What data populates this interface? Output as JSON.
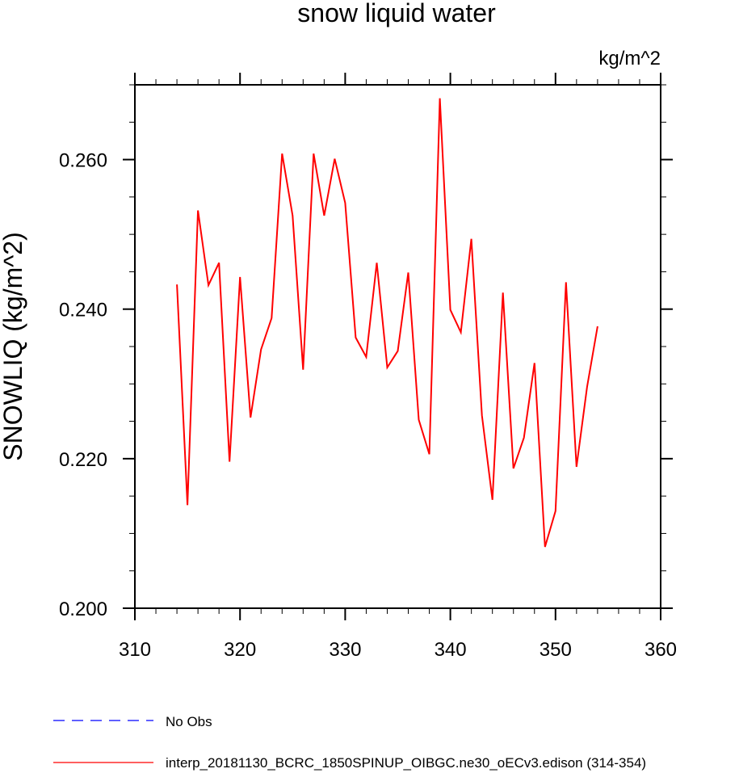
{
  "chart_data": {
    "type": "line",
    "title": "snow liquid water",
    "units_label": "kg/m^2",
    "xlabel": "",
    "ylabel": "SNOWLIQ  (kg/m^2)",
    "xlim": [
      310,
      360
    ],
    "ylim": [
      0.2,
      0.27
    ],
    "x_ticks": [
      310,
      320,
      330,
      340,
      350,
      360
    ],
    "x_tick_labels": [
      "310",
      "320",
      "330",
      "340",
      "350",
      "360"
    ],
    "y_ticks": [
      0.2,
      0.22,
      0.24,
      0.26
    ],
    "y_tick_labels": [
      "0.200",
      "0.220",
      "0.240",
      "0.260"
    ],
    "x_minor_step": 2,
    "y_minor_step": 0.005,
    "grid": false,
    "legend_position": "bottom-left",
    "series": [
      {
        "name": "No Obs",
        "color": "#0000ff",
        "dash": "dashed",
        "x": [],
        "y": []
      },
      {
        "name": "interp_20181130_BCRC_1850SPINUP_OIBGC.ne30_oECv3.edison (314-354)",
        "color": "#ff0000",
        "dash": "solid",
        "x": [
          314,
          315,
          316,
          317,
          318,
          319,
          320,
          321,
          322,
          323,
          324,
          325,
          326,
          327,
          328,
          329,
          330,
          331,
          332,
          333,
          334,
          335,
          336,
          337,
          338,
          339,
          340,
          341,
          342,
          343,
          344,
          345,
          346,
          347,
          348,
          349,
          350,
          351,
          352,
          353,
          354
        ],
        "y": [
          0.2433,
          0.2138,
          0.2532,
          0.2432,
          0.2462,
          0.2196,
          0.2443,
          0.2255,
          0.2346,
          0.2388,
          0.2608,
          0.2525,
          0.2319,
          0.2608,
          0.2525,
          0.2601,
          0.2542,
          0.2362,
          0.2336,
          0.2462,
          0.2322,
          0.2344,
          0.2449,
          0.2252,
          0.2206,
          0.2682,
          0.2399,
          0.2369,
          0.2494,
          0.2258,
          0.2145,
          0.2422,
          0.2187,
          0.2228,
          0.2328,
          0.2082,
          0.213,
          0.2436,
          0.2189,
          0.2296,
          0.2377
        ]
      }
    ]
  }
}
